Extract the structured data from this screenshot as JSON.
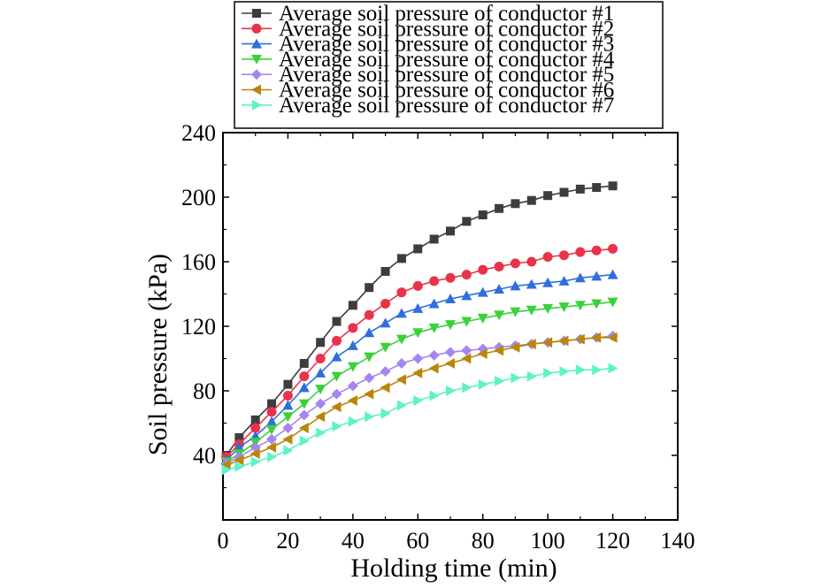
{
  "chart_data": {
    "type": "line",
    "title": "",
    "xlabel": "Holding time (min)",
    "ylabel": "Soil pressure (kPa)",
    "xlim": [
      0,
      140
    ],
    "ylim": [
      0,
      240
    ],
    "xticks": [
      0,
      20,
      40,
      60,
      80,
      100,
      120,
      140
    ],
    "yticks": [
      40,
      80,
      120,
      160,
      200,
      240
    ],
    "grid": false,
    "legend_position": "top",
    "x": [
      1,
      5,
      10,
      15,
      20,
      25,
      30,
      35,
      40,
      45,
      50,
      55,
      60,
      65,
      70,
      75,
      80,
      85,
      90,
      95,
      100,
      105,
      110,
      115,
      120
    ],
    "series": [
      {
        "name": "Average soil pressure of conductor #1",
        "color": "#3d3d3d",
        "marker": "square",
        "values": [
          40,
          51,
          62,
          72,
          84,
          97,
          110,
          123,
          133,
          144,
          154,
          162,
          168,
          174,
          179,
          185,
          189,
          193,
          196,
          198,
          201,
          203,
          205,
          206,
          207
        ]
      },
      {
        "name": "Average soil pressure of conductor #2",
        "color": "#e8334a",
        "marker": "circle",
        "values": [
          39,
          47,
          57,
          67,
          77,
          89,
          100,
          111,
          119,
          127,
          134,
          141,
          145,
          148,
          150,
          152,
          155,
          157,
          159,
          160,
          163,
          164,
          166,
          167,
          168
        ]
      },
      {
        "name": "Average soil pressure of conductor #3",
        "color": "#2f6fdd",
        "marker": "triangle-up",
        "values": [
          37,
          45,
          52,
          61,
          71,
          82,
          91,
          101,
          108,
          116,
          122,
          128,
          131,
          134,
          137,
          139,
          141,
          143,
          145,
          146,
          147,
          148,
          150,
          151,
          152
        ]
      },
      {
        "name": "Average soil pressure of conductor #4",
        "color": "#3ad13a",
        "marker": "triangle-down",
        "values": [
          36,
          41,
          48,
          56,
          64,
          72,
          81,
          89,
          95,
          101,
          107,
          112,
          116,
          119,
          121,
          123,
          125,
          127,
          129,
          130,
          131,
          132,
          133,
          134,
          135
        ]
      },
      {
        "name": "Average soil pressure of conductor #5",
        "color": "#a686ec",
        "marker": "diamond",
        "values": [
          35,
          39,
          45,
          50,
          57,
          65,
          72,
          78,
          83,
          88,
          92,
          97,
          100,
          102,
          104,
          105,
          106,
          107,
          108,
          109,
          110,
          111,
          112,
          113,
          114
        ]
      },
      {
        "name": "Average soil pressure of conductor #6",
        "color": "#b8860b",
        "marker": "triangle-left",
        "values": [
          34,
          37,
          41,
          45,
          50,
          57,
          64,
          70,
          74,
          78,
          82,
          87,
          91,
          94,
          97,
          100,
          103,
          105,
          107,
          109,
          110,
          111,
          112,
          113,
          113
        ]
      },
      {
        "name": "Average soil pressure of conductor #7",
        "color": "#5ef2c8",
        "marker": "triangle-right",
        "values": [
          31,
          33,
          36,
          39,
          43,
          49,
          54,
          58,
          61,
          64,
          66,
          71,
          74,
          77,
          80,
          82,
          84,
          86,
          88,
          89,
          91,
          92,
          93,
          93,
          94
        ]
      }
    ]
  }
}
